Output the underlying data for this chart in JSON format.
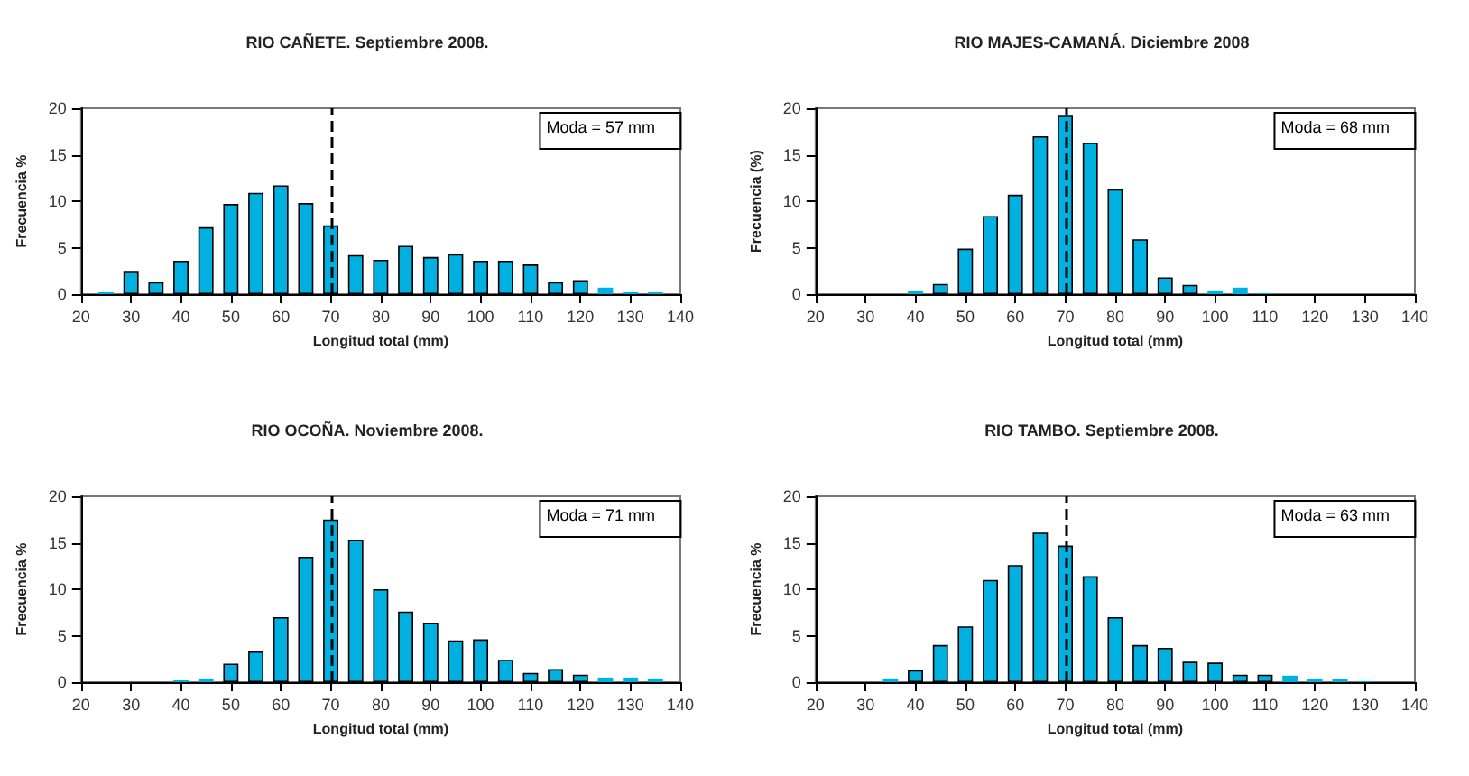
{
  "chart_data": [
    {
      "type": "bar",
      "title": "RIO CAÑETE. Septiembre 2008.",
      "xlabel": "Longitud total (mm)",
      "ylabel": "Frecuencia %",
      "annotations": [
        "Moda = 57 mm"
      ],
      "x": [
        25,
        30,
        35,
        40,
        45,
        50,
        55,
        60,
        65,
        70,
        75,
        80,
        85,
        90,
        95,
        100,
        105,
        110,
        115,
        120,
        125,
        130,
        135
      ],
      "values": [
        0.2,
        2.5,
        1.3,
        3.6,
        7.2,
        9.7,
        10.9,
        11.7,
        9.8,
        7.4,
        4.2,
        3.7,
        5.2,
        4.0,
        4.3,
        3.6,
        3.6,
        3.2,
        1.3,
        1.5,
        0.7,
        0.2,
        0.2
      ],
      "color": "#00b0e0",
      "xlim": [
        20,
        140
      ],
      "xticks": [
        20,
        30,
        40,
        50,
        60,
        70,
        80,
        90,
        100,
        110,
        120,
        130,
        140
      ],
      "ylim": [
        0,
        20
      ],
      "yticks": [
        0,
        5,
        10,
        15,
        20
      ],
      "grid": false,
      "ref_lines": [
        {
          "axis": "x",
          "value": 70,
          "line_style": "dashed",
          "color": "#000000"
        }
      ]
    },
    {
      "type": "bar",
      "title": "RIO MAJES-CAMANÁ. Diciembre 2008",
      "xlabel": "Longitud total (mm)",
      "ylabel": "Frecuencia (%)",
      "annotations": [
        "Moda = 68 mm"
      ],
      "x": [
        40,
        45,
        50,
        55,
        60,
        65,
        70,
        75,
        80,
        85,
        90,
        95,
        100,
        105,
        110
      ],
      "values": [
        0.4,
        1.1,
        4.9,
        8.4,
        10.7,
        17.0,
        19.2,
        16.3,
        11.3,
        5.9,
        1.8,
        1.0,
        0.4,
        0.7,
        0.1
      ],
      "color": "#00b0e0",
      "xlim": [
        20,
        140
      ],
      "xticks": [
        20,
        30,
        40,
        50,
        60,
        70,
        80,
        90,
        100,
        110,
        120,
        130,
        140
      ],
      "ylim": [
        0,
        20
      ],
      "yticks": [
        0,
        5,
        10,
        15,
        20
      ],
      "grid": false,
      "ref_lines": [
        {
          "axis": "x",
          "value": 70,
          "line_style": "dashed",
          "color": "#000000"
        }
      ]
    },
    {
      "type": "bar",
      "title": "RIO OCOÑA. Noviembre 2008.",
      "xlabel": "Longitud total (mm)",
      "ylabel": "Frecuencia %",
      "annotations": [
        "Moda = 71 mm"
      ],
      "x": [
        40,
        45,
        50,
        55,
        60,
        65,
        70,
        75,
        80,
        85,
        90,
        95,
        100,
        105,
        110,
        115,
        120,
        125,
        130,
        135
      ],
      "values": [
        0.2,
        0.4,
        2.0,
        3.3,
        7.0,
        13.5,
        17.5,
        15.3,
        10.0,
        7.6,
        6.4,
        4.5,
        4.6,
        2.4,
        1.0,
        1.4,
        0.8,
        0.5,
        0.5,
        0.4
      ],
      "color": "#00b0e0",
      "xlim": [
        20,
        140
      ],
      "xticks": [
        20,
        30,
        40,
        50,
        60,
        70,
        80,
        90,
        100,
        110,
        120,
        130,
        140
      ],
      "ylim": [
        0,
        20
      ],
      "yticks": [
        0,
        5,
        10,
        15,
        20
      ],
      "grid": false,
      "ref_lines": [
        {
          "axis": "x",
          "value": 70,
          "line_style": "dashed",
          "color": "#000000"
        }
      ]
    },
    {
      "type": "bar",
      "title": "RIO TAMBO. Septiembre 2008.",
      "xlabel": "Longitud total (mm)",
      "ylabel": "Frecuencia %",
      "annotations": [
        "Moda = 63 mm"
      ],
      "x": [
        35,
        40,
        45,
        50,
        55,
        60,
        65,
        70,
        75,
        80,
        85,
        90,
        95,
        100,
        105,
        110,
        115,
        120,
        125,
        130
      ],
      "values": [
        0.4,
        1.3,
        4.0,
        6.0,
        11.0,
        12.6,
        16.1,
        14.7,
        11.4,
        7.0,
        4.0,
        3.7,
        2.2,
        2.1,
        0.8,
        0.8,
        0.7,
        0.3,
        0.3,
        0.1
      ],
      "color": "#00b0e0",
      "xlim": [
        20,
        140
      ],
      "xticks": [
        20,
        30,
        40,
        50,
        60,
        70,
        80,
        90,
        100,
        110,
        120,
        130,
        140
      ],
      "ylim": [
        0,
        20
      ],
      "yticks": [
        0,
        5,
        10,
        15,
        20
      ],
      "grid": false,
      "ref_lines": [
        {
          "axis": "x",
          "value": 70,
          "line_style": "dashed",
          "color": "#000000"
        }
      ]
    }
  ]
}
